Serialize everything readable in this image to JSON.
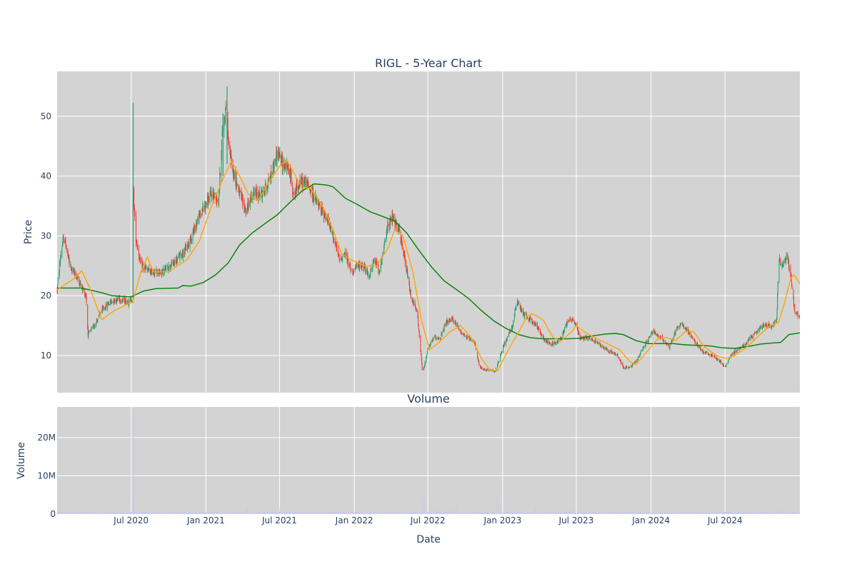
{
  "chart_data": [
    {
      "type": "candlestick",
      "title": "RIGL - 5-Year Chart",
      "ylabel": "Price",
      "ylim": [
        3.8,
        57.5
      ],
      "yticks": [
        10,
        20,
        30,
        40,
        50
      ],
      "xlim": [
        "2020-01-01",
        "2025-01-01"
      ],
      "grid": true,
      "colors": {
        "up": "#26a269",
        "down": "#ef3b2c",
        "ma_short": "#ffa500",
        "ma_long": "#008000",
        "background": "#d3d3d3"
      },
      "price_path": [
        [
          "2020-01-01",
          21
        ],
        [
          "2020-01-10",
          27
        ],
        [
          "2020-01-18",
          30
        ],
        [
          "2020-02-01",
          25
        ],
        [
          "2020-02-20",
          23
        ],
        [
          "2020-03-01",
          21.5
        ],
        [
          "2020-03-12",
          20
        ],
        [
          "2020-03-17",
          13.5
        ],
        [
          "2020-04-01",
          15
        ],
        [
          "2020-04-20",
          17.5
        ],
        [
          "2020-05-10",
          19
        ],
        [
          "2020-06-01",
          19.5
        ],
        [
          "2020-06-25",
          19
        ],
        [
          "2020-07-03",
          19.5
        ],
        [
          "2020-07-06",
          38
        ],
        [
          "2020-07-12",
          30
        ],
        [
          "2020-07-25",
          25
        ],
        [
          "2020-08-15",
          24
        ],
        [
          "2020-09-15",
          24
        ],
        [
          "2020-10-15",
          25.5
        ],
        [
          "2020-11-15",
          28
        ],
        [
          "2020-12-20",
          34
        ],
        [
          "2021-01-15",
          37
        ],
        [
          "2021-02-01",
          36
        ],
        [
          "2021-02-10",
          47
        ],
        [
          "2021-02-20",
          52
        ],
        [
          "2021-02-25",
          46
        ],
        [
          "2021-03-05",
          42
        ],
        [
          "2021-03-25",
          37
        ],
        [
          "2021-04-10",
          34
        ],
        [
          "2021-04-25",
          37
        ],
        [
          "2021-05-20",
          37
        ],
        [
          "2021-06-10",
          40
        ],
        [
          "2021-06-25",
          44
        ],
        [
          "2021-07-10",
          42
        ],
        [
          "2021-07-25",
          41
        ],
        [
          "2021-08-05",
          37
        ],
        [
          "2021-08-20",
          39
        ],
        [
          "2021-09-05",
          39
        ],
        [
          "2021-09-20",
          37
        ],
        [
          "2021-10-05",
          35
        ],
        [
          "2021-10-25",
          33
        ],
        [
          "2021-11-10",
          30
        ],
        [
          "2021-11-25",
          26
        ],
        [
          "2021-12-10",
          27
        ],
        [
          "2021-12-25",
          24
        ],
        [
          "2022-01-10",
          25
        ],
        [
          "2022-01-25",
          25
        ],
        [
          "2022-02-05",
          23
        ],
        [
          "2022-02-20",
          26
        ],
        [
          "2022-03-05",
          24
        ],
        [
          "2022-03-25",
          32
        ],
        [
          "2022-04-05",
          33
        ],
        [
          "2022-04-20",
          31
        ],
        [
          "2022-05-05",
          26
        ],
        [
          "2022-05-20",
          20
        ],
        [
          "2022-06-05",
          17
        ],
        [
          "2022-06-18",
          7
        ],
        [
          "2022-07-01",
          11
        ],
        [
          "2022-07-15",
          13
        ],
        [
          "2022-08-01",
          13
        ],
        [
          "2022-08-15",
          15.5
        ],
        [
          "2022-09-01",
          16
        ],
        [
          "2022-09-20",
          14
        ],
        [
          "2022-10-05",
          13
        ],
        [
          "2022-10-25",
          12
        ],
        [
          "2022-11-05",
          8
        ],
        [
          "2022-11-25",
          7.5
        ],
        [
          "2022-12-15",
          7.5
        ],
        [
          "2023-01-05",
          12
        ],
        [
          "2023-01-25",
          15
        ],
        [
          "2023-02-05",
          19
        ],
        [
          "2023-02-20",
          17
        ],
        [
          "2023-03-10",
          16
        ],
        [
          "2023-03-25",
          15
        ],
        [
          "2023-04-10",
          13
        ],
        [
          "2023-04-25",
          12
        ],
        [
          "2023-05-10",
          12
        ],
        [
          "2023-05-25",
          13
        ],
        [
          "2023-06-10",
          16
        ],
        [
          "2023-06-25",
          16
        ],
        [
          "2023-07-10",
          13
        ],
        [
          "2023-08-01",
          13
        ],
        [
          "2023-08-25",
          12
        ],
        [
          "2023-09-15",
          11
        ],
        [
          "2023-10-10",
          10
        ],
        [
          "2023-10-25",
          8
        ],
        [
          "2023-11-10",
          8
        ],
        [
          "2023-11-25",
          9
        ],
        [
          "2023-12-10",
          11
        ],
        [
          "2024-01-05",
          14
        ],
        [
          "2024-01-25",
          13
        ],
        [
          "2024-02-15",
          11.5
        ],
        [
          "2024-03-01",
          14
        ],
        [
          "2024-03-15",
          15.5
        ],
        [
          "2024-04-01",
          14
        ],
        [
          "2024-04-20",
          12
        ],
        [
          "2024-05-10",
          10.5
        ],
        [
          "2024-05-30",
          10
        ],
        [
          "2024-06-20",
          9
        ],
        [
          "2024-07-01",
          8
        ],
        [
          "2024-07-15",
          10
        ],
        [
          "2024-08-01",
          11
        ],
        [
          "2024-08-20",
          12
        ],
        [
          "2024-09-10",
          13.5
        ],
        [
          "2024-10-01",
          15
        ],
        [
          "2024-10-25",
          15
        ],
        [
          "2024-11-05",
          16
        ],
        [
          "2024-11-10",
          26
        ],
        [
          "2024-11-20",
          25
        ],
        [
          "2024-12-01",
          27
        ],
        [
          "2024-12-12",
          22
        ],
        [
          "2024-12-20",
          17
        ],
        [
          "2025-01-01",
          16.5
        ]
      ],
      "ma_short": [
        [
          "2020-01-01",
          21
        ],
        [
          "2020-02-15",
          23
        ],
        [
          "2020-03-01",
          24.2
        ],
        [
          "2020-03-20",
          21.5
        ],
        [
          "2020-04-20",
          16
        ],
        [
          "2020-05-20",
          17.5
        ],
        [
          "2020-06-20",
          18.5
        ],
        [
          "2020-07-05",
          19
        ],
        [
          "2020-07-25",
          24
        ],
        [
          "2020-08-10",
          26.5
        ],
        [
          "2020-08-25",
          24
        ],
        [
          "2020-10-01",
          24
        ],
        [
          "2020-11-15",
          26
        ],
        [
          "2020-12-15",
          29
        ],
        [
          "2021-01-15",
          35
        ],
        [
          "2021-02-15",
          40
        ],
        [
          "2021-03-05",
          42.5
        ],
        [
          "2021-03-25",
          40
        ],
        [
          "2021-04-15",
          37
        ],
        [
          "2021-05-10",
          36
        ],
        [
          "2021-06-05",
          39
        ],
        [
          "2021-07-05",
          42
        ],
        [
          "2021-07-20",
          42.5
        ],
        [
          "2021-08-10",
          40
        ],
        [
          "2021-08-25",
          38
        ],
        [
          "2021-09-15",
          38
        ],
        [
          "2021-10-15",
          35
        ],
        [
          "2021-11-10",
          31
        ],
        [
          "2021-12-01",
          27
        ],
        [
          "2021-12-25",
          26
        ],
        [
          "2022-01-25",
          25
        ],
        [
          "2022-02-25",
          25
        ],
        [
          "2022-03-25",
          28
        ],
        [
          "2022-04-10",
          31
        ],
        [
          "2022-05-01",
          30
        ],
        [
          "2022-05-25",
          24
        ],
        [
          "2022-06-15",
          16
        ],
        [
          "2022-07-05",
          11
        ],
        [
          "2022-07-25",
          12
        ],
        [
          "2022-08-25",
          14
        ],
        [
          "2022-09-20",
          15
        ],
        [
          "2022-10-15",
          13
        ],
        [
          "2022-11-10",
          9.5
        ],
        [
          "2022-12-01",
          7.5
        ],
        [
          "2022-12-20",
          7.5
        ],
        [
          "2023-01-15",
          11
        ],
        [
          "2023-02-10",
          14
        ],
        [
          "2023-03-01",
          16.5
        ],
        [
          "2023-03-15",
          17
        ],
        [
          "2023-04-10",
          16
        ],
        [
          "2023-05-05",
          13
        ],
        [
          "2023-05-25",
          12.5
        ],
        [
          "2023-06-20",
          14
        ],
        [
          "2023-07-01",
          15
        ],
        [
          "2023-07-20",
          14
        ],
        [
          "2023-08-15",
          13
        ],
        [
          "2023-09-15",
          12
        ],
        [
          "2023-10-15",
          11
        ],
        [
          "2023-11-10",
          9
        ],
        [
          "2023-11-25",
          8.5
        ],
        [
          "2023-12-20",
          10.5
        ],
        [
          "2024-01-20",
          13
        ],
        [
          "2024-02-10",
          13
        ],
        [
          "2024-03-01",
          12.5
        ],
        [
          "2024-03-25",
          14
        ],
        [
          "2024-04-15",
          14
        ],
        [
          "2024-05-10",
          11.5
        ],
        [
          "2024-06-10",
          10
        ],
        [
          "2024-07-05",
          9.5
        ],
        [
          "2024-07-25",
          10
        ],
        [
          "2024-08-25",
          11.5
        ],
        [
          "2024-09-25",
          13.5
        ],
        [
          "2024-10-20",
          15
        ],
        [
          "2024-11-10",
          15.5
        ],
        [
          "2024-11-25",
          19
        ],
        [
          "2024-12-10",
          23
        ],
        [
          "2024-12-18",
          23.5
        ],
        [
          "2025-01-01",
          22
        ]
      ],
      "ma_long": [
        [
          "2020-01-01",
          21.3
        ],
        [
          "2020-03-01",
          21.3
        ],
        [
          "2020-04-20",
          20.5
        ],
        [
          "2020-05-15",
          20
        ],
        [
          "2020-07-01",
          19.8
        ],
        [
          "2020-08-01",
          20.8
        ],
        [
          "2020-09-01",
          21.2
        ],
        [
          "2020-10-25",
          21.3
        ],
        [
          "2020-11-05",
          21.7
        ],
        [
          "2020-11-25",
          21.6
        ],
        [
          "2020-12-25",
          22.2
        ],
        [
          "2021-01-25",
          23.5
        ],
        [
          "2021-02-25",
          25.5
        ],
        [
          "2021-03-25",
          28.5
        ],
        [
          "2021-04-25",
          30.5
        ],
        [
          "2021-05-25",
          32
        ],
        [
          "2021-06-25",
          33.5
        ],
        [
          "2021-07-25",
          35.5
        ],
        [
          "2021-08-25",
          37.5
        ],
        [
          "2021-09-25",
          38.7
        ],
        [
          "2021-10-25",
          38.5
        ],
        [
          "2021-11-10",
          38.2
        ],
        [
          "2021-12-10",
          36.3
        ],
        [
          "2022-01-10",
          35.2
        ],
        [
          "2022-02-10",
          34
        ],
        [
          "2022-03-10",
          33.3
        ],
        [
          "2022-04-10",
          32.5
        ],
        [
          "2022-05-10",
          30.5
        ],
        [
          "2022-06-10",
          27.5
        ],
        [
          "2022-07-10",
          24.8
        ],
        [
          "2022-08-10",
          22.5
        ],
        [
          "2022-09-10",
          21
        ],
        [
          "2022-10-10",
          19.5
        ],
        [
          "2022-11-10",
          17.5
        ],
        [
          "2022-12-10",
          15.8
        ],
        [
          "2023-01-10",
          14.5
        ],
        [
          "2023-02-10",
          13.5
        ],
        [
          "2023-03-10",
          13
        ],
        [
          "2023-04-10",
          12.8
        ],
        [
          "2023-05-10",
          12.8
        ],
        [
          "2023-06-10",
          12.8
        ],
        [
          "2023-07-10",
          12.9
        ],
        [
          "2023-08-10",
          13.3
        ],
        [
          "2023-09-10",
          13.6
        ],
        [
          "2023-10-05",
          13.7
        ],
        [
          "2023-10-25",
          13.5
        ],
        [
          "2023-11-25",
          12.5
        ],
        [
          "2023-12-25",
          12
        ],
        [
          "2024-01-25",
          12
        ],
        [
          "2024-02-25",
          12
        ],
        [
          "2024-03-25",
          11.8
        ],
        [
          "2024-04-25",
          11.7
        ],
        [
          "2024-05-25",
          11.6
        ],
        [
          "2024-06-25",
          11.3
        ],
        [
          "2024-07-25",
          11.2
        ],
        [
          "2024-08-25",
          11.5
        ],
        [
          "2024-09-25",
          11.9
        ],
        [
          "2024-10-25",
          12.1
        ],
        [
          "2024-11-15",
          12.2
        ],
        [
          "2024-12-05",
          13.5
        ],
        [
          "2025-01-01",
          13.8
        ]
      ]
    },
    {
      "type": "bar",
      "title": "Volume",
      "xlabel": "Date",
      "ylabel": "Volume",
      "ylim": [
        0,
        28000000
      ],
      "yticks": [
        0,
        10000000,
        20000000
      ],
      "ytick_labels": [
        "0",
        "10M",
        "20M"
      ],
      "xtick_labels": [
        {
          "date": "2020-07-01",
          "label": "Jul 2020"
        },
        {
          "date": "2021-01-01",
          "label": "Jan 2021"
        },
        {
          "date": "2021-07-01",
          "label": "Jul 2021"
        },
        {
          "date": "2022-01-01",
          "label": "Jan 2022"
        },
        {
          "date": "2022-07-01",
          "label": "Jul 2022"
        },
        {
          "date": "2023-01-01",
          "label": "Jan 2023"
        },
        {
          "date": "2023-07-01",
          "label": "Jul 2023"
        },
        {
          "date": "2024-01-01",
          "label": "Jan 2024"
        },
        {
          "date": "2024-07-01",
          "label": "Jul 2024"
        }
      ],
      "bar_color": "#c8c8f0",
      "typical_volume": 400000,
      "spikes": [
        [
          "2020-07-06",
          26500000
        ],
        [
          "2020-07-08",
          3500000
        ],
        [
          "2021-04-12",
          1800000
        ],
        [
          "2021-07-02",
          1500000
        ],
        [
          "2022-06-17",
          5500000
        ],
        [
          "2022-06-21",
          3200000
        ],
        [
          "2022-07-25",
          1100000
        ],
        [
          "2022-09-05",
          1500000
        ],
        [
          "2022-09-12",
          2800000
        ],
        [
          "2022-12-20",
          5800000
        ],
        [
          "2023-03-22",
          2000000
        ],
        [
          "2023-06-20",
          1300000
        ],
        [
          "2024-05-15",
          800000
        ],
        [
          "2024-11-08",
          1500000
        ]
      ]
    }
  ]
}
